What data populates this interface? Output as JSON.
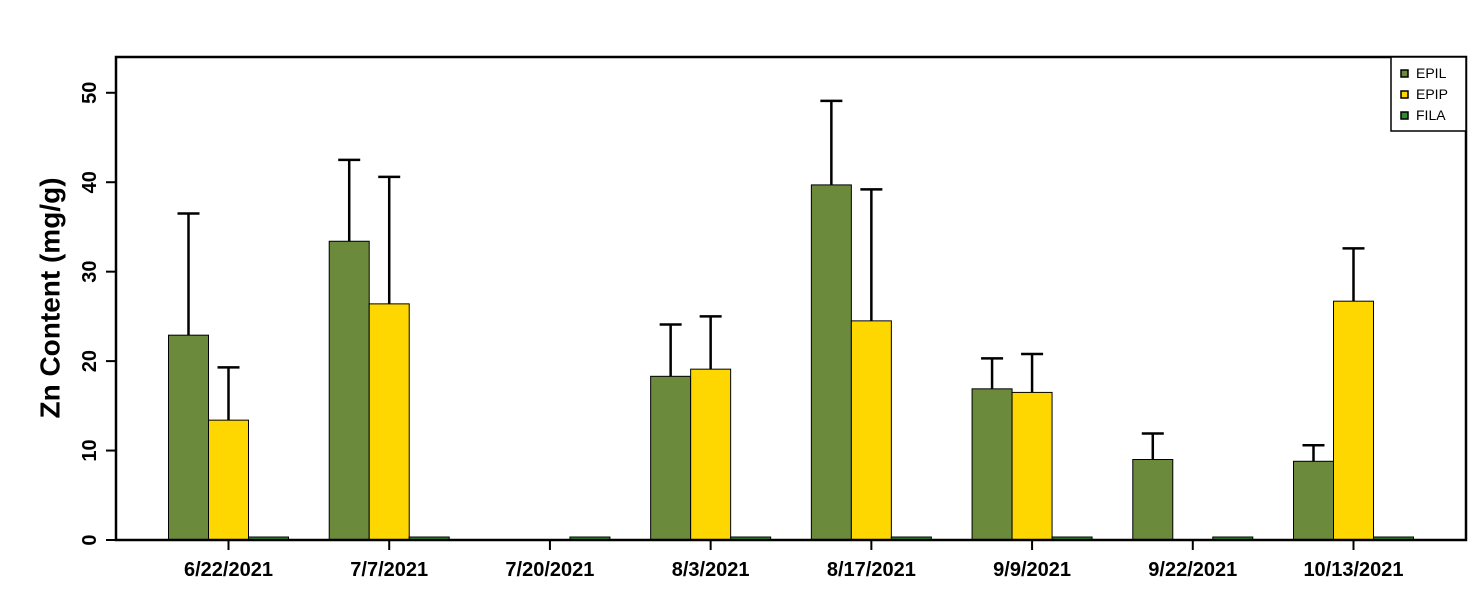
{
  "chart_data": {
    "type": "bar",
    "title": "",
    "xlabel": "",
    "ylabel": "Zn Content (mg/g)",
    "ylim": [
      0,
      54
    ],
    "yticks": [
      0,
      10,
      20,
      30,
      40,
      50
    ],
    "grid": false,
    "legend_position": "top-right",
    "categories": [
      "6/22/2021",
      "7/7/2021",
      "7/20/2021",
      "8/3/2021",
      "8/17/2021",
      "9/9/2021",
      "9/22/2021",
      "10/13/2021"
    ],
    "series": [
      {
        "name": "EPIL",
        "color": "#6b8a3c",
        "values": [
          22.9,
          33.4,
          0,
          18.3,
          39.7,
          16.9,
          9.0,
          8.8
        ],
        "errors": [
          13.6,
          9.1,
          0,
          5.8,
          9.4,
          3.4,
          2.9,
          1.8
        ]
      },
      {
        "name": "EPIP",
        "color": "#ffd700",
        "values": [
          13.4,
          26.4,
          0,
          19.1,
          24.5,
          16.5,
          0,
          26.7
        ],
        "errors": [
          5.9,
          14.2,
          0,
          5.9,
          14.7,
          4.3,
          0,
          5.9
        ]
      },
      {
        "name": "FILA",
        "color": "#2e8b2e",
        "values": [
          0.15,
          0.3,
          0.15,
          0.2,
          0.2,
          0.1,
          0.15,
          0.15
        ],
        "errors": [
          0.05,
          0.1,
          0.05,
          0.1,
          0.1,
          0.05,
          0.05,
          0.05
        ]
      }
    ]
  }
}
